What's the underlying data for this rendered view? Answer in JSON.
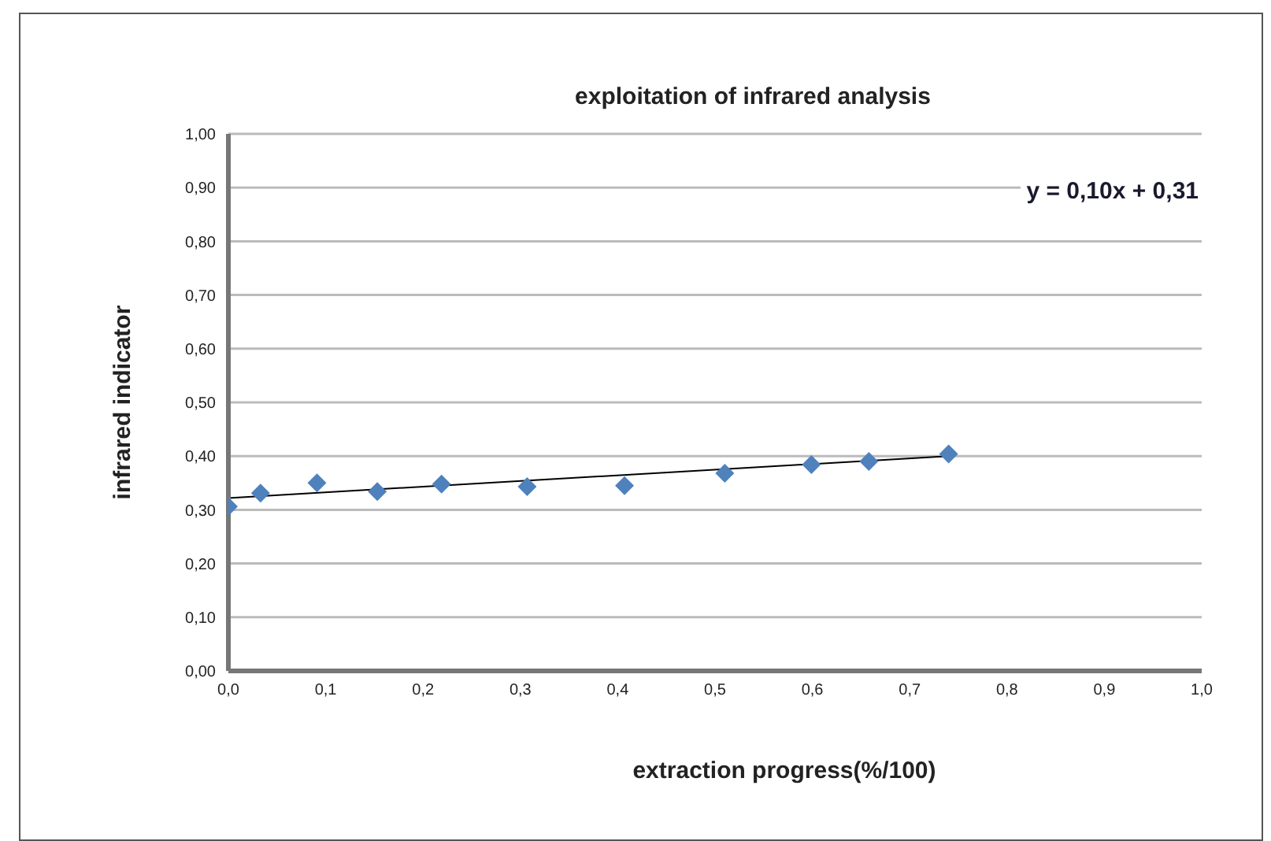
{
  "chart_data": {
    "type": "scatter",
    "title": "exploitation of  infrared analysis",
    "xlabel": "extraction progress(%/100)",
    "ylabel": "infrared indicator",
    "annotations": [
      "y = 0,10x + 0,31"
    ],
    "series": [
      {
        "color": "#4f81bd",
        "marker": "diamond",
        "x": [
          0,
          0.033,
          0.091,
          0.153,
          0.219,
          0.307,
          0.407,
          0.51,
          0.599,
          0.658,
          0.74
        ],
        "values": [
          0.306,
          0.331,
          0.35,
          0.334,
          0.348,
          0.343,
          0.345,
          0.368,
          0.384,
          0.39,
          0.404
        ]
      },
      {
        "type": "line",
        "color": "#000000",
        "marker": "none",
        "x": [
          0,
          0.74
        ],
        "values": [
          0.322,
          0.4
        ]
      }
    ],
    "xlim": [
      0,
      1
    ],
    "ylim": [
      0,
      1
    ],
    "xticks": [
      {
        "value": 0,
        "label": "0,0"
      },
      {
        "value": 0.1,
        "label": "0,1"
      },
      {
        "value": 0.2,
        "label": "0,2"
      },
      {
        "value": 0.3,
        "label": "0,3"
      },
      {
        "value": 0.4,
        "label": "0,4"
      },
      {
        "value": 0.5,
        "label": "0,5"
      },
      {
        "value": 0.6,
        "label": "0,6"
      },
      {
        "value": 0.7,
        "label": "0,7"
      },
      {
        "value": 0.8,
        "label": "0,8"
      },
      {
        "value": 0.9,
        "label": "0,9"
      },
      {
        "value": 1,
        "label": "1,0"
      }
    ],
    "yticks": [
      {
        "value": 0,
        "label": "0,00"
      },
      {
        "value": 0.1,
        "label": "0,10"
      },
      {
        "value": 0.2,
        "label": "0,20"
      },
      {
        "value": 0.3,
        "label": "0,30"
      },
      {
        "value": 0.4,
        "label": "0,40"
      },
      {
        "value": 0.5,
        "label": "0,50"
      },
      {
        "value": 0.6,
        "label": "0,60"
      },
      {
        "value": 0.7,
        "label": "0,70"
      },
      {
        "value": 0.8,
        "label": "0,80"
      },
      {
        "value": 0.9,
        "label": "0,90"
      },
      {
        "value": 1,
        "label": "1,00"
      }
    ],
    "grid": "y",
    "legend": false
  }
}
